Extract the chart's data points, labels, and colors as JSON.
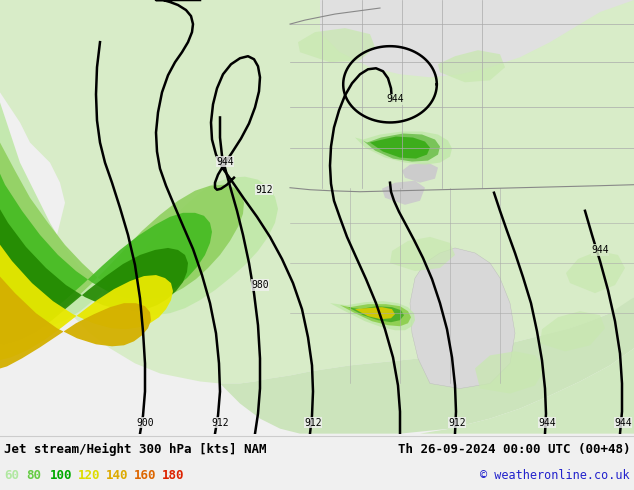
{
  "title_left": "Jet stream/Height 300 hPa [kts] NAM",
  "title_right": "Th 26-09-2024 00:00 UTC (00+48)",
  "copyright": "© weatheronline.co.uk",
  "legend_values": [
    "60",
    "80",
    "100",
    "120",
    "140",
    "160",
    "180"
  ],
  "legend_colors": [
    "#b0e8a0",
    "#66cc44",
    "#00aa00",
    "#dddd00",
    "#ddaa00",
    "#dd6600",
    "#dd2200"
  ],
  "fig_width": 6.34,
  "fig_height": 4.9,
  "dpi": 100,
  "map_bg": "#f0f0f0",
  "land_light_green": "#d4edc4",
  "land_green": "#c0e0b0",
  "ocean_gray": "#e8e8e8",
  "jet_c1": "#c8f0b0",
  "jet_c2": "#90d870",
  "jet_c3": "#44bb44",
  "jet_c4": "#008800",
  "jet_yellow": "#f0f000",
  "jet_gold": "#e8c800",
  "contour_lw": 1.8,
  "border_lw": 0.6
}
